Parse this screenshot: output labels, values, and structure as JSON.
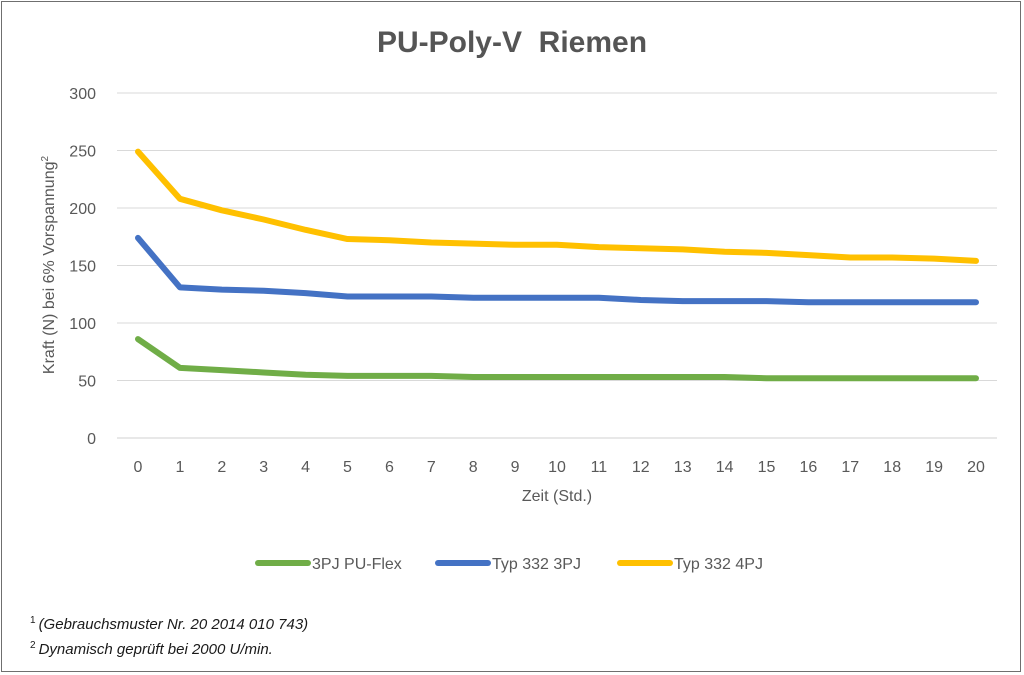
{
  "chart_data": {
    "type": "line",
    "title": "PU-Poly-V  Riemen",
    "xlabel": "Zeit (Std.)",
    "ylabel": "Kraft (N) bei 6% Vorspannung",
    "ylabel_superscript": "2",
    "x": [
      0,
      1,
      2,
      3,
      4,
      5,
      6,
      7,
      8,
      9,
      10,
      11,
      12,
      13,
      14,
      15,
      16,
      17,
      18,
      19,
      20
    ],
    "xlim": [
      0,
      20
    ],
    "ylim": [
      0,
      300
    ],
    "yticks": [
      0,
      50,
      100,
      150,
      200,
      250,
      300
    ],
    "grid": true,
    "legend_position": "bottom",
    "series": [
      {
        "name": "3PJ PU-Flex",
        "color": "#70ad47",
        "values": [
          86,
          61,
          59,
          57,
          55,
          54,
          54,
          54,
          53,
          53,
          53,
          53,
          53,
          53,
          53,
          52,
          52,
          52,
          52,
          52,
          52
        ]
      },
      {
        "name": "Typ 332 3PJ",
        "color": "#4472c4",
        "values": [
          174,
          131,
          129,
          128,
          126,
          123,
          123,
          123,
          122,
          122,
          122,
          122,
          120,
          119,
          119,
          119,
          118,
          118,
          118,
          118,
          118
        ]
      },
      {
        "name": "Typ 332 4PJ",
        "color": "#ffc000",
        "values": [
          249,
          208,
          198,
          190,
          181,
          173,
          172,
          170,
          169,
          168,
          168,
          166,
          165,
          164,
          162,
          161,
          159,
          157,
          157,
          156,
          154
        ]
      }
    ]
  },
  "footnotes": [
    {
      "marker": "1",
      "text": "(Gebrauchsmuster Nr. 20 2014 010 743)"
    },
    {
      "marker": "2",
      "text": "Dynamisch geprüft bei 2000 U/min."
    }
  ]
}
